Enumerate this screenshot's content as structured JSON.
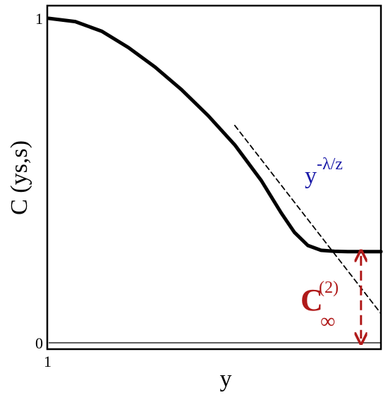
{
  "chart_data": {
    "type": "line",
    "xlabel": "y",
    "ylabel": "C (ys,s)",
    "x_tick_labels": [
      "1"
    ],
    "y_tick_labels": [
      "1",
      "0"
    ],
    "ylim": [
      0,
      1
    ],
    "grid": false,
    "series": [
      {
        "style": "solid",
        "color": "#000000",
        "x": [
          0.0,
          0.08,
          0.16,
          0.24,
          0.32,
          0.4,
          0.48,
          0.56,
          0.64,
          0.7,
          0.74,
          0.78,
          0.82,
          0.86,
          0.9,
          0.94,
          1.0
        ],
        "y": [
          1.0,
          0.99,
          0.96,
          0.91,
          0.85,
          0.78,
          0.7,
          0.61,
          0.5,
          0.4,
          0.34,
          0.3,
          0.285,
          0.282,
          0.281,
          0.281,
          0.281
        ]
      },
      {
        "style": "dashed",
        "color": "#000000",
        "x": [
          0.56,
          1.0
        ],
        "y": [
          0.67,
          0.09
        ]
      }
    ],
    "annotations": {
      "power_law": {
        "base": "y",
        "exponent": "-λ/z",
        "color": "#1a1aa8"
      },
      "plateau": {
        "symbol": "C",
        "subscript": "∞",
        "superscript": "(2)",
        "color": "#b01a1a"
      }
    }
  }
}
